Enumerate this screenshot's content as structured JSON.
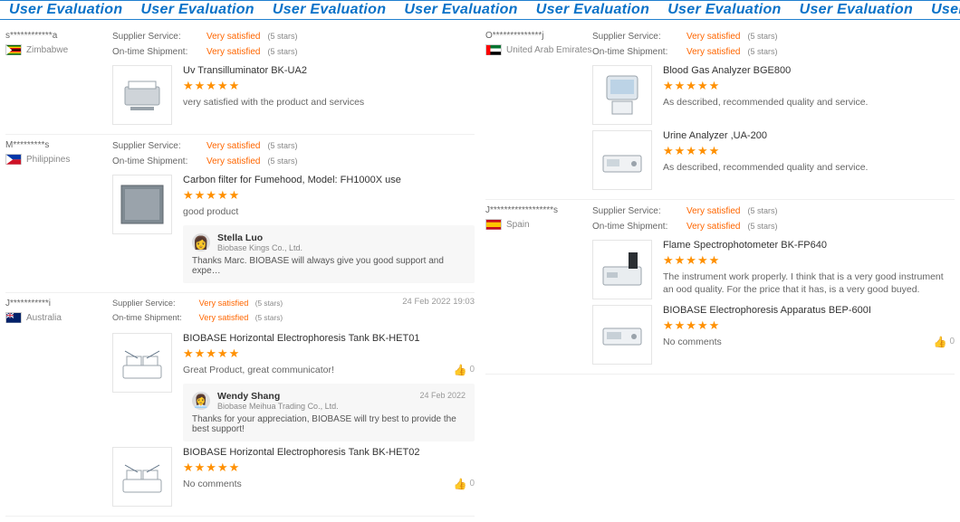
{
  "banner": {
    "label": "User Evaluation",
    "color": "#0a72c8",
    "repeat": 8
  },
  "labels": {
    "supplier_service": "Supplier Service:",
    "ontime_shipment": "On-time Shipment:",
    "stars_note": "(5 stars)"
  },
  "rating_value": "Very satisfied",
  "colors": {
    "accent": "#ff6600",
    "star": "#ff9000",
    "banner": "#0a72c8"
  },
  "left": [
    {
      "handle": "s************a",
      "country": "Zimbabwe",
      "flag": {
        "bars": [
          [
            "#006400",
            "#ffd200",
            "#d40000",
            "#000000",
            "#d40000",
            "#ffd200",
            "#006400"
          ]
        ],
        "triangle": "#ffffff"
      },
      "products": [
        {
          "title": "Uv Transilluminator BK-UA2",
          "stars": 5,
          "comment": "very satisfied with the product and services",
          "thumb": "device-box"
        }
      ]
    },
    {
      "handle": "M*********s",
      "country": "Philippines",
      "flag": {
        "type": "ph"
      },
      "products": [
        {
          "title": "Carbon filter for Fumehood, Model: FH1000X use",
          "stars": 5,
          "comment": "good product",
          "thumb": "panel",
          "reply": {
            "name": "Stella Luo",
            "company": "Biobase Kings Co., Ltd.",
            "text": "Thanks Marc. BIOBASE will always give you good support and expe…",
            "avatar": "face"
          }
        }
      ]
    },
    {
      "handle": "J***********i",
      "country": "Australia",
      "flag": {
        "type": "au"
      },
      "date": "24 Feb 2022 19:03",
      "products": [
        {
          "title": "BIOBASE Horizontal Electrophoresis Tank BK-HET01",
          "stars": 5,
          "comment": "Great Product, great communicator!",
          "likes": 0,
          "thumb": "tray",
          "reply": {
            "name": "Wendy Shang",
            "company": "Biobase Meihua Trading Co., Ltd.",
            "text": "Thanks for your appreciation, BIOBASE will try best to provide the best support!",
            "date": "24 Feb 2022",
            "avatar": "face2"
          }
        },
        {
          "title": "BIOBASE Horizontal Electrophoresis Tank BK-HET02",
          "stars": 5,
          "comment": "No comments",
          "likes": 0,
          "thumb": "tray"
        }
      ]
    }
  ],
  "right": [
    {
      "handle": "O**************j",
      "country": "United Arab Emirates",
      "flag": {
        "type": "uae"
      },
      "products": [
        {
          "title": "Blood Gas Analyzer BGE800",
          "stars": 5,
          "comment": "As described, recommended quality and service.",
          "thumb": "monitor"
        },
        {
          "title": "Urine Analyzer ,UA-200",
          "stars": 5,
          "comment": "As described, recommended quality and service.",
          "thumb": "flat-device"
        }
      ]
    },
    {
      "handle": "J******************s",
      "country": "Spain",
      "flag": {
        "type": "es"
      },
      "products": [
        {
          "title": "Flame Spectrophotometer BK-FP640",
          "stars": 5,
          "comment": "The instrument work properly. I think that is a very good instrument an ood quality. For the price that it has, is a very good buyed.",
          "thumb": "spectro"
        },
        {
          "title": "BIOBASE Electrophoresis Apparatus BEP-600I",
          "stars": 5,
          "comment": "No comments",
          "likes": 0,
          "thumb": "flat-box"
        }
      ]
    }
  ]
}
